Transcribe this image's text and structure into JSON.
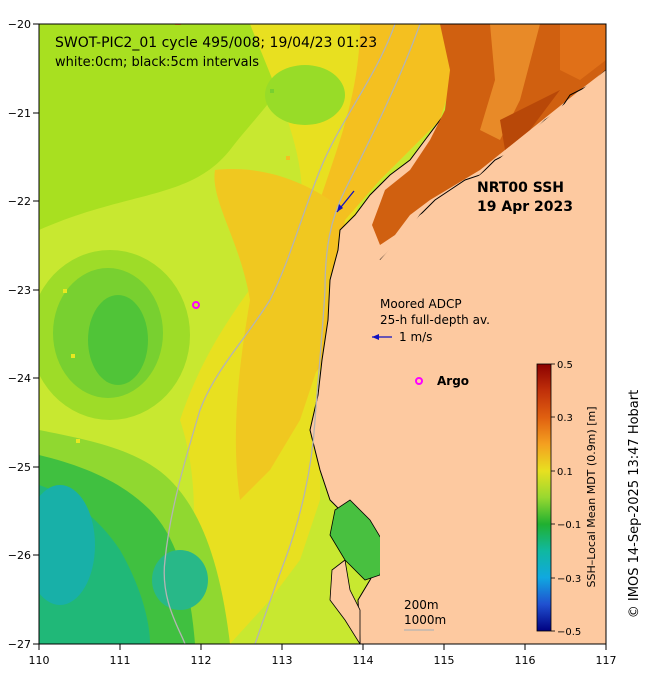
{
  "header": {
    "line1": "SWOT-PIC2_01 cycle 495/008; 19/04/23 01:23",
    "line2": "white:0cm; black:5cm intervals"
  },
  "product": {
    "name": "NRT00 SSH",
    "date": "19 Apr 2023"
  },
  "adcp": {
    "title": "Moored ADCP",
    "subtitle": "25-h full-depth av.",
    "scale": "1 m/s"
  },
  "argo": {
    "label": "Argo"
  },
  "isobaths": {
    "shallow": "200m",
    "deep": "1000m"
  },
  "colorbar": {
    "title": "SSH–Local Mean MDT (0.9m) [m]",
    "ticks": [
      "0.5",
      "0.3",
      "0.1",
      "−0.1",
      "−0.3",
      "−0.5"
    ],
    "vmin": -0.5,
    "vmax": 0.5
  },
  "axes": {
    "x_ticks": [
      "110",
      "111",
      "112",
      "113",
      "114",
      "115",
      "116",
      "117"
    ],
    "y_ticks": [
      "−20",
      "−21",
      "−22",
      "−23",
      "−24",
      "−25",
      "−26",
      "−27"
    ],
    "lon_range": [
      110,
      117
    ],
    "lat_range": [
      -27,
      -20
    ]
  },
  "credit": "© IMOS 14-Sep-2025 13:47 Hobart",
  "colors": {
    "land": "#fdc9a0",
    "coast": "#000000",
    "isobath": "#b4b4b4",
    "argo_marker": "#ff00ff",
    "adcp_arrow": "#1010c0"
  }
}
